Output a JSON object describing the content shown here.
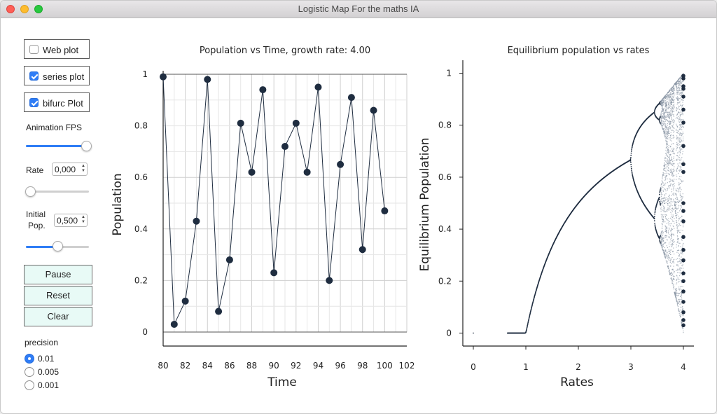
{
  "window": {
    "title": "Logistic Map For the maths IA"
  },
  "controls": {
    "web_plot": {
      "label": "Web plot",
      "checked": false
    },
    "series_plot": {
      "label": "series plot",
      "checked": true
    },
    "bifurc_plot": {
      "label": "bifurc Plot",
      "checked": true
    },
    "fps_label": "Animation FPS",
    "fps_level": 1.0,
    "rate_label": "Rate",
    "rate_value": "0,000",
    "rate_level": 0.0,
    "initial_pop_label_1": "Initial",
    "initial_pop_label_2": "Pop.",
    "initial_pop_value": "0,500",
    "initial_pop_level": 0.5,
    "pause_label": "Pause",
    "reset_label": "Reset",
    "clear_label": "Clear",
    "precision_label": "precision",
    "precision_options": [
      "0.01",
      "0.005",
      "0.001"
    ],
    "precision_selected": 0
  },
  "icons": {
    "spinner": "stepper-arrows-icon",
    "close": "close-icon",
    "minimize": "minimize-icon",
    "zoom": "zoom-icon"
  },
  "colors": {
    "accent": "#2f7df6",
    "marker": "#1f2d40",
    "button_bg": "#e8faf6"
  },
  "chart_data": [
    {
      "type": "line",
      "title": "Population vs Time, growth rate: 4.00",
      "xlabel": "Time",
      "ylabel": "Population",
      "xlim": [
        80,
        102
      ],
      "ylim": [
        0,
        1
      ],
      "xticks": [
        "80",
        "82",
        "84",
        "86",
        "88",
        "90",
        "92",
        "94",
        "96",
        "98",
        "100",
        "102"
      ],
      "xtick_values": [
        80,
        82,
        84,
        86,
        88,
        90,
        92,
        94,
        96,
        98,
        100,
        102
      ],
      "yticks": [
        "0",
        "0.2",
        "0.4",
        "0.6",
        "0.8",
        "1"
      ],
      "ytick_values": [
        0,
        0.2,
        0.4,
        0.6,
        0.8,
        1
      ],
      "grid": true,
      "x": [
        80,
        81,
        82,
        83,
        84,
        85,
        86,
        87,
        88,
        89,
        90,
        91,
        92,
        93,
        94,
        95,
        96,
        97,
        98,
        99,
        100
      ],
      "y": [
        0.99,
        0.03,
        0.12,
        0.43,
        0.98,
        0.08,
        0.28,
        0.81,
        0.62,
        0.94,
        0.23,
        0.72,
        0.81,
        0.62,
        0.95,
        0.2,
        0.65,
        0.91,
        0.32,
        0.86,
        0.47
      ]
    },
    {
      "type": "scatter",
      "title": "Equilibrium population vs rates",
      "xlabel": "Rates",
      "ylabel": "Equilibrium Population",
      "xlim": [
        -0.2,
        4.2
      ],
      "ylim": [
        -0.05,
        1.05
      ],
      "xticks": [
        "0",
        "1",
        "2",
        "3",
        "4"
      ],
      "xtick_values": [
        0,
        1,
        2,
        3,
        4
      ],
      "yticks": [
        "0",
        "0.2",
        "0.4",
        "0.6",
        "0.8",
        "1"
      ],
      "ytick_values": [
        0,
        0.2,
        0.4,
        0.6,
        0.8,
        1
      ],
      "grid": false,
      "x_range": [
        0.65,
        4.0
      ],
      "highlight_rate": 4.0,
      "highlight_values": [
        0.03,
        0.05,
        0.08,
        0.12,
        0.16,
        0.2,
        0.23,
        0.28,
        0.32,
        0.37,
        0.43,
        0.47,
        0.5,
        0.62,
        0.65,
        0.72,
        0.81,
        0.86,
        0.91,
        0.94,
        0.95,
        0.98,
        0.99
      ]
    }
  ]
}
